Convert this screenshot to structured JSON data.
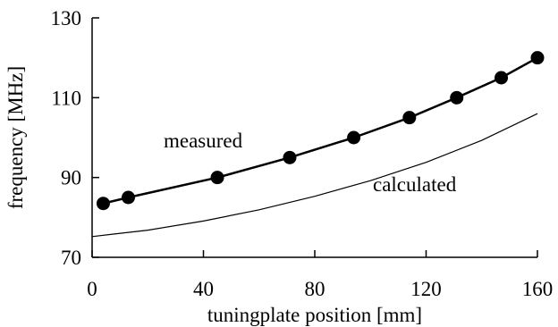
{
  "chart_data": {
    "type": "line",
    "xlabel": "tuningplate position [mm]",
    "ylabel": "frequency [MHz]",
    "xlim": [
      0,
      160
    ],
    "ylim": [
      70,
      130
    ],
    "xticks": [
      0,
      40,
      80,
      120,
      160
    ],
    "yticks": [
      70,
      90,
      110,
      130
    ],
    "grid": false,
    "series": [
      {
        "name": "measured",
        "style": "line-with-markers",
        "x": [
          4,
          13,
          45,
          71,
          94,
          114,
          131,
          147,
          160
        ],
        "y": [
          83.5,
          85,
          90,
          95,
          100,
          105,
          110,
          115,
          120
        ]
      },
      {
        "name": "calculated",
        "style": "line",
        "x": [
          0,
          20,
          40,
          60,
          80,
          100,
          120,
          140,
          160
        ],
        "y": [
          75.2,
          76.8,
          79.1,
          81.9,
          85.3,
          89.2,
          93.8,
          99.3,
          106
        ]
      }
    ]
  }
}
